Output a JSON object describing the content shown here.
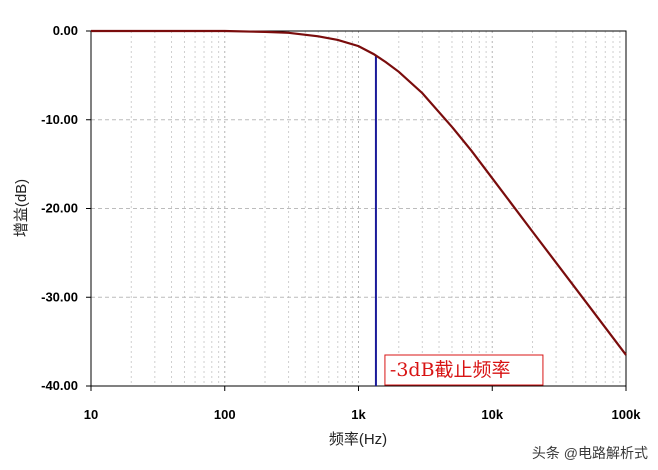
{
  "chart_data": {
    "type": "line",
    "xscale": "log",
    "xlim": [
      10,
      100000
    ],
    "ylim": [
      -40,
      0
    ],
    "xlabel": "频率(Hz)",
    "ylabel": "增益(dB)",
    "x_ticks": [
      "10",
      "100",
      "1k",
      "10k",
      "100k"
    ],
    "y_ticks": [
      "0.00",
      "-10.00",
      "-20.00",
      "-30.00",
      "-40.00"
    ],
    "grid": true,
    "series": [
      {
        "color": "#7a0c0c",
        "x": [
          10,
          20,
          50,
          100,
          200,
          300,
          500,
          700,
          1000,
          1300,
          1600,
          2000,
          3000,
          5000,
          7000,
          10000,
          20000,
          50000,
          100000
        ],
        "y": [
          0,
          0,
          0,
          0,
          -0.1,
          -0.2,
          -0.6,
          -1.0,
          -1.7,
          -2.6,
          -3.5,
          -4.6,
          -7.0,
          -10.8,
          -13.5,
          -16.6,
          -22.6,
          -30.5,
          -36.5
        ]
      }
    ],
    "cutoff": {
      "x": 1350,
      "color": "#1a1a9a",
      "label": "-3dB截止频率",
      "label_color": "#d81414"
    }
  },
  "watermark": "头条 @电路解析式"
}
